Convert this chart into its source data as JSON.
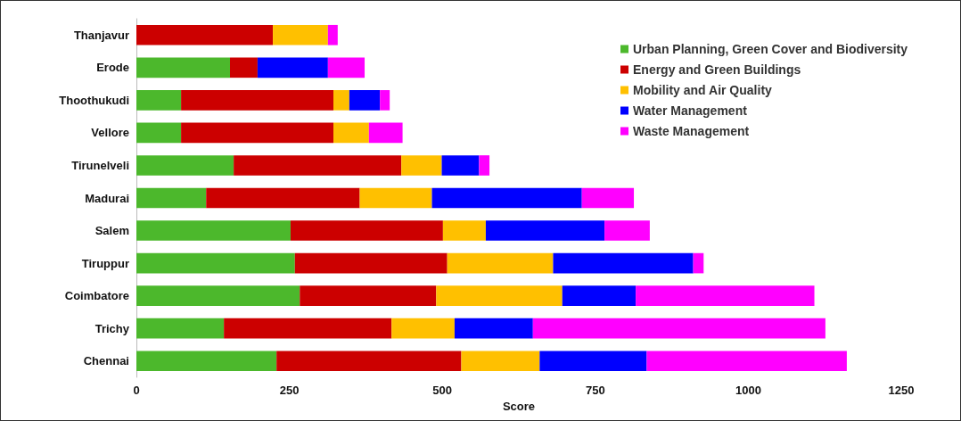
{
  "chart_data": {
    "type": "bar",
    "orientation": "horizontal",
    "stacked": true,
    "xlabel": "Score",
    "categories": [
      "Thanjavur",
      "Erode",
      "Thoothukudi",
      "Vellore",
      "Tirunelveli",
      "Madurai",
      "Salem",
      "Tiruppur",
      "Coimbatore",
      "Trichy",
      "Chennai"
    ],
    "series": [
      {
        "name": "Urban Planning, Green Cover and Biodiversity",
        "color": "#4cb82c",
        "values": [
          0,
          153,
          73,
          73,
          159,
          114,
          252,
          259,
          267,
          143,
          229
        ]
      },
      {
        "name": "Energy and Green Buildings",
        "color": "#cc0000",
        "values": [
          223,
          45,
          249,
          249,
          274,
          251,
          249,
          249,
          223,
          274,
          302
        ]
      },
      {
        "name": "Mobility and Air Quality",
        "color": "#ffc000",
        "values": [
          90,
          0,
          26,
          58,
          66,
          118,
          70,
          173,
          206,
          103,
          128
        ]
      },
      {
        "name": "Water Management",
        "color": "#0000ff",
        "values": [
          0,
          115,
          50,
          0,
          61,
          245,
          194,
          229,
          120,
          128,
          175
        ]
      },
      {
        "name": "Waste Management",
        "color": "#ff00ff",
        "values": [
          16,
          60,
          16,
          55,
          17,
          85,
          74,
          17,
          292,
          478,
          327
        ]
      }
    ],
    "xlim": [
      0,
      1250
    ],
    "xticks": [
      0,
      250,
      500,
      750,
      1000,
      1250
    ],
    "grid": false,
    "legend": "top right"
  }
}
